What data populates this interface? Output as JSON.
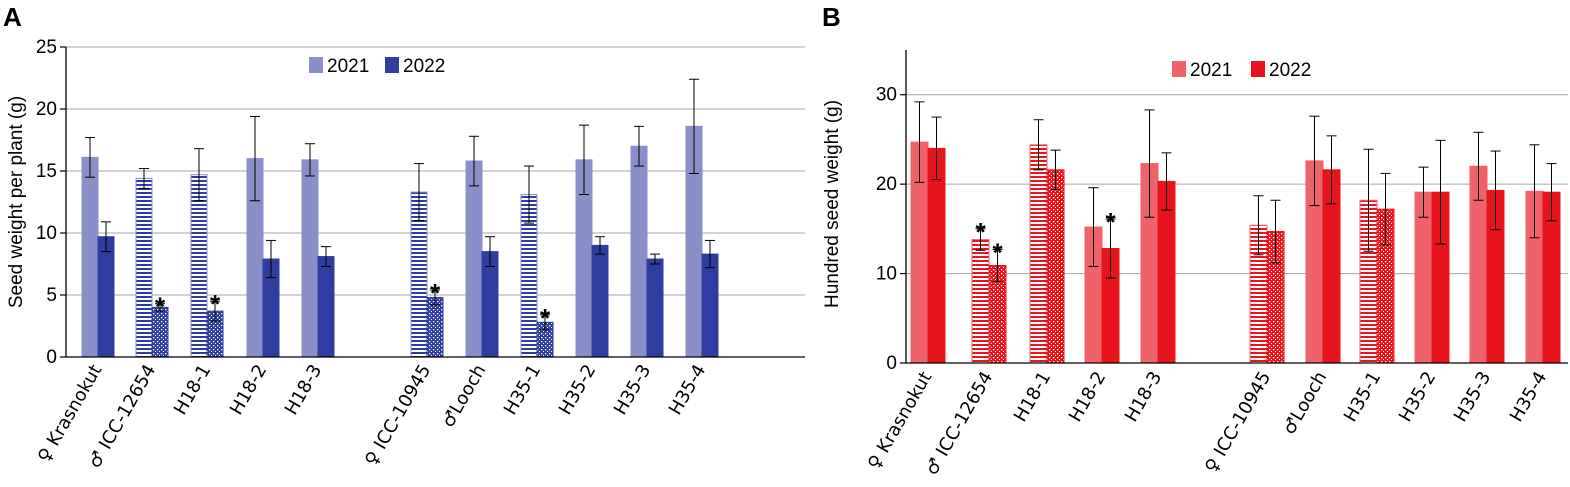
{
  "panels": [
    {
      "letter": "A",
      "legend": [
        "2021",
        "2022"
      ]
    },
    {
      "letter": "B",
      "legend": [
        "2021",
        "2022"
      ]
    }
  ],
  "chart_data": [
    {
      "type": "bar",
      "panel": "A",
      "title": "",
      "xlabel": "",
      "ylabel": "Seed weight per plant (g)",
      "ylim": [
        0,
        25
      ],
      "yticks": [
        0,
        5,
        10,
        15,
        20,
        25
      ],
      "grid": true,
      "legend_position": "top-center",
      "categories": [
        "♀ Krasnokut",
        "♂ ICC-12654",
        "H18-1",
        "H18-2",
        "H18-3",
        "♀ ICC-10945",
        "♂Looch",
        "H35-1",
        "H35-2",
        "H35-3",
        "H35-4"
      ],
      "category_groups": [
        [
          0,
          1,
          2,
          3,
          4
        ],
        [
          5,
          6,
          7,
          8,
          9,
          10
        ]
      ],
      "series": [
        {
          "name": "2021",
          "color": "#8a8fc9",
          "values": [
            16.1,
            14.4,
            14.7,
            16.0,
            15.9,
            13.3,
            15.8,
            13.1,
            15.9,
            17.0,
            18.6
          ],
          "errors": [
            1.6,
            0.8,
            2.1,
            3.4,
            1.3,
            2.3,
            2.0,
            2.3,
            2.8,
            1.6,
            3.8
          ],
          "patterns": [
            "solid",
            "hlines",
            "hlines",
            "solid",
            "solid",
            "hlines",
            "solid",
            "hlines",
            "solid",
            "solid",
            "solid"
          ]
        },
        {
          "name": "2022",
          "color": "#2f3d9e",
          "values": [
            9.7,
            4.0,
            3.7,
            7.9,
            8.1,
            4.8,
            8.5,
            2.8,
            9.0,
            7.9,
            8.3
          ],
          "errors": [
            1.2,
            0.3,
            0.8,
            1.5,
            0.8,
            0.6,
            1.2,
            0.6,
            0.7,
            0.4,
            1.1
          ],
          "patterns": [
            "solid",
            "dots",
            "dots",
            "solid",
            "solid",
            "dots",
            "solid",
            "dots",
            "solid",
            "solid",
            "solid"
          ]
        }
      ],
      "annotations": [
        {
          "text": "*",
          "category": "♂ ICC-12654",
          "series": "2022"
        },
        {
          "text": "*",
          "category": "H18-1",
          "series": "2022"
        },
        {
          "text": "*",
          "category": "♀ ICC-10945",
          "series": "2022"
        },
        {
          "text": "*",
          "category": "H35-1",
          "series": "2022"
        }
      ]
    },
    {
      "type": "bar",
      "panel": "B",
      "title": "",
      "xlabel": "",
      "ylabel": "Hundred  seed weight (g)",
      "ylim": [
        0,
        35
      ],
      "yticks": [
        0,
        10,
        20,
        30
      ],
      "grid": true,
      "legend_position": "top-center",
      "categories": [
        "♀ Krasnokut",
        "♂ ICC-12654",
        "H18-1",
        "H18-2",
        "H18-3",
        "♀ ICC-10945",
        "♂Looch",
        "H35-1",
        "H35-2",
        "H35-3",
        "H35-4"
      ],
      "category_groups": [
        [
          0,
          1,
          2,
          3,
          4
        ],
        [
          5,
          6,
          7,
          8,
          9,
          10
        ]
      ],
      "series": [
        {
          "name": "2021",
          "color": "#f0626a",
          "values": [
            24.7,
            13.8,
            24.4,
            15.2,
            22.3,
            15.4,
            22.6,
            18.2,
            19.1,
            22.0,
            19.2
          ],
          "errors": [
            4.5,
            1.2,
            2.8,
            4.4,
            6.0,
            3.3,
            5.0,
            5.7,
            2.8,
            3.8,
            5.2
          ],
          "patterns": [
            "solid",
            "hlines",
            "hlines",
            "solid",
            "solid",
            "hlines",
            "solid",
            "hlines",
            "solid",
            "solid",
            "solid"
          ]
        },
        {
          "name": "2022",
          "color": "#e8141c",
          "values": [
            24.0,
            10.9,
            21.6,
            12.8,
            20.3,
            14.7,
            21.6,
            17.2,
            19.1,
            19.3,
            19.1
          ],
          "errors": [
            3.5,
            1.8,
            2.2,
            3.3,
            3.2,
            3.5,
            3.8,
            4.0,
            5.8,
            4.4,
            3.2
          ],
          "patterns": [
            "solid",
            "dots",
            "dots",
            "solid",
            "solid",
            "dots",
            "solid",
            "dots",
            "solid",
            "solid",
            "solid"
          ]
        }
      ],
      "annotations": [
        {
          "text": "*",
          "category": "♂ ICC-12654",
          "series": "2021"
        },
        {
          "text": "*",
          "category": "♂ ICC-12654",
          "series": "2022"
        },
        {
          "text": "*",
          "category": "H18-2",
          "series": "2022"
        }
      ]
    }
  ]
}
